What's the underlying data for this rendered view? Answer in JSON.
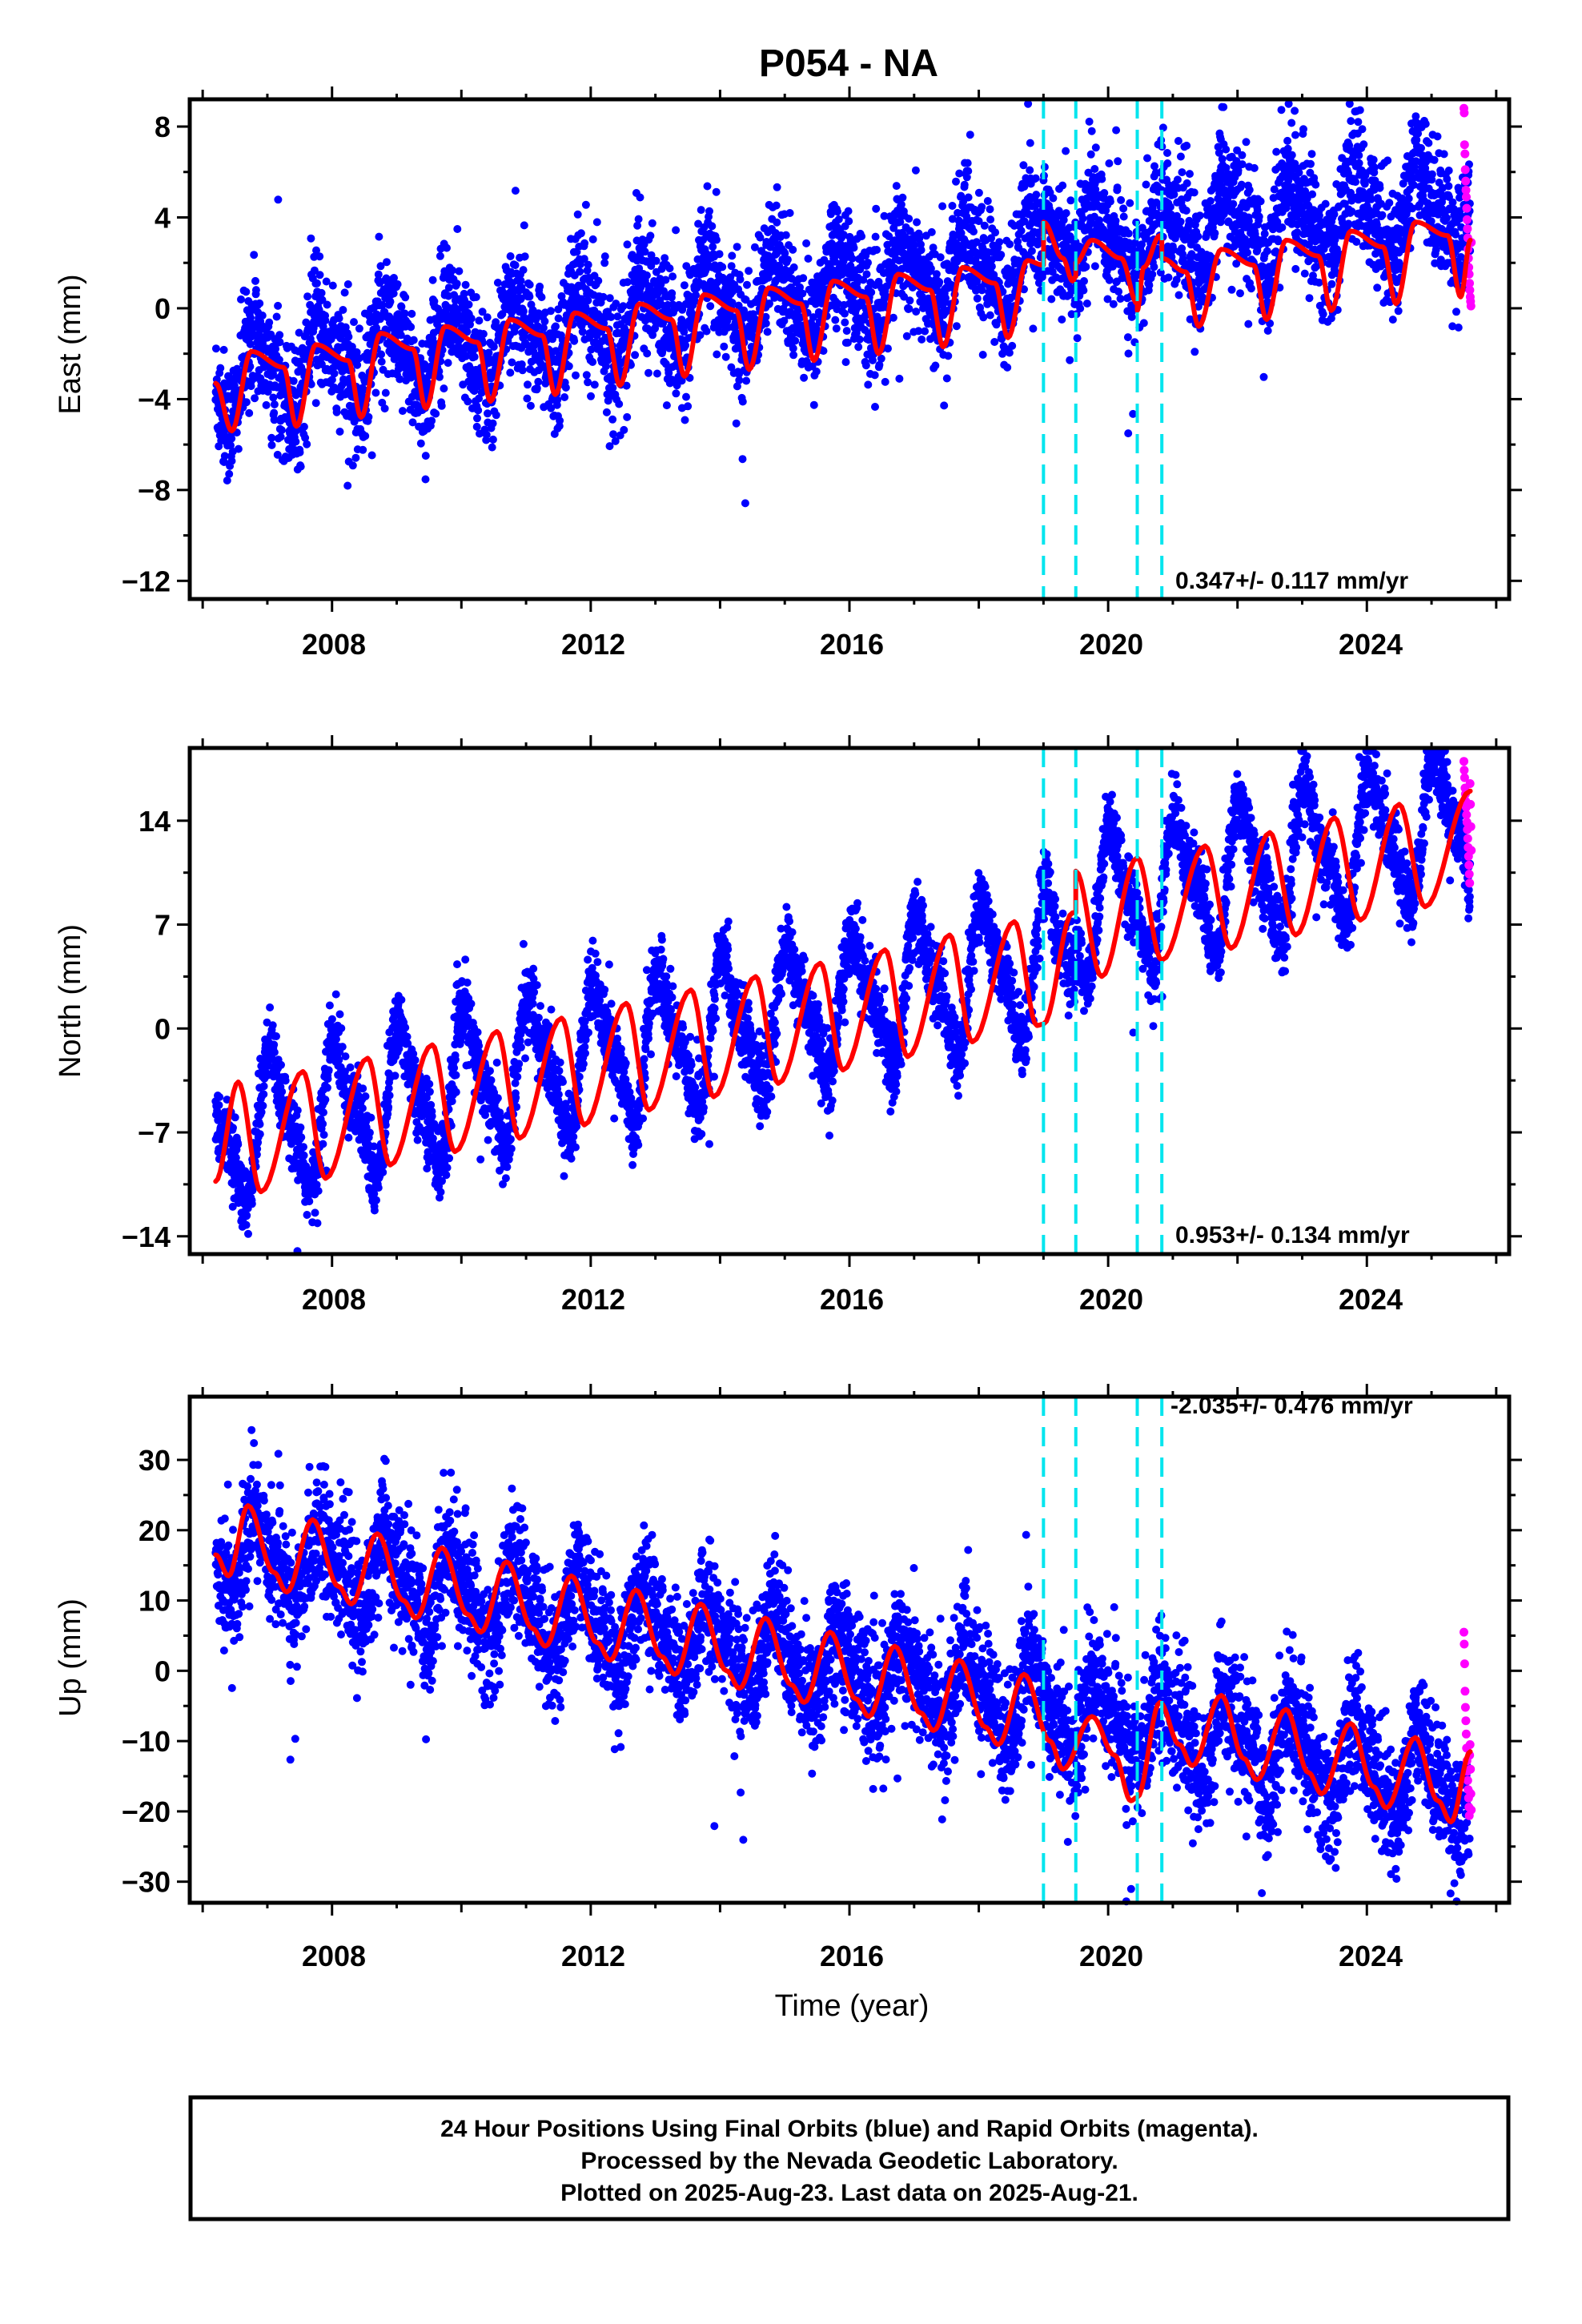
{
  "title": "P054 - NA",
  "x_axis_label": "Time (year)",
  "x_ticks": [
    "2008",
    "2012",
    "2016",
    "2020",
    "2024"
  ],
  "caption": {
    "line1": "24 Hour Positions Using Final Orbits (blue) and Rapid Orbits (magenta).",
    "line2": "Processed by the Nevada Geodetic Laboratory.",
    "line3": "Plotted on 2025-Aug-23. Last data on 2025-Aug-21."
  },
  "colors": {
    "final_orbits": "#0000ff",
    "rapid_orbits": "#ff00ff",
    "model": "#ff0000",
    "steps": "#00e5ee"
  },
  "chart_data": [
    {
      "type": "scatter",
      "panel": "east",
      "ylabel": "East (mm)",
      "rate_label": "0.347+/- 0.117 mm/yr",
      "xlim": [
        2005.8,
        2026.2
      ],
      "ylim": [
        -12.8,
        9.2
      ],
      "yticks": [
        8,
        4,
        0,
        -4,
        -8,
        -12
      ],
      "ytick_labels": [
        "8",
        "4",
        "0",
        "−4",
        "−8",
        "−12"
      ],
      "steps": [
        2019.0,
        2019.5,
        2020.45,
        2020.83
      ],
      "x_start": 2006.2,
      "x_end": 2025.6,
      "trend": {
        "t0": 2006.2,
        "v0": -3.2,
        "pieces": [
          {
            "until": 2019.0,
            "rate": 0.42
          },
          {
            "until": 2025.6,
            "rate": 0.3
          }
        ]
      },
      "offsets": [
        {
          "t": 2019.0,
          "dv": 1.5
        },
        {
          "t": 2019.5,
          "dv": -1.0
        },
        {
          "t": 2020.45,
          "dv": -0.5
        },
        {
          "t": 2020.83,
          "dv": 0.5
        }
      ],
      "annual_amp": 1.6,
      "annual_phase": 0.6,
      "noise": 1.35,
      "series": [
        {
          "name": "Final Orbits",
          "color": "#0000ff",
          "n": 5200
        },
        {
          "name": "Rapid Orbits",
          "color": "#ff00ff",
          "n": 22,
          "t_range": [
            2025.5,
            2025.62
          ],
          "values": [
            8.8,
            8.6,
            7.2,
            6.8,
            6.1,
            5.6,
            5.2,
            4.9,
            4.4,
            3.9,
            3.5,
            3.1,
            2.6,
            2.2,
            1.8,
            1.5,
            1.1,
            0.8,
            0.5,
            0.3,
            0.1,
            2.9
          ]
        }
      ],
      "model": [
        [
          2006.2,
          -3.3
        ],
        [
          2006.45,
          -5.4
        ],
        [
          2006.75,
          -1.9
        ],
        [
          2007.25,
          -2.6
        ],
        [
          2007.45,
          -5.2
        ],
        [
          2007.75,
          -1.6
        ],
        [
          2008.25,
          -2.3
        ],
        [
          2008.45,
          -4.8
        ],
        [
          2008.75,
          -1.1
        ],
        [
          2009.25,
          -1.8
        ],
        [
          2009.45,
          -4.4
        ],
        [
          2009.75,
          -0.8
        ],
        [
          2010.25,
          -1.5
        ],
        [
          2010.45,
          -4.1
        ],
        [
          2010.75,
          -0.5
        ],
        [
          2011.25,
          -1.2
        ],
        [
          2011.45,
          -3.8
        ],
        [
          2011.75,
          -0.2
        ],
        [
          2012.25,
          -0.9
        ],
        [
          2012.45,
          -3.4
        ],
        [
          2012.75,
          0.2
        ],
        [
          2013.25,
          -0.5
        ],
        [
          2013.45,
          -3.0
        ],
        [
          2013.75,
          0.6
        ],
        [
          2014.25,
          -0.1
        ],
        [
          2014.45,
          -2.7
        ],
        [
          2014.75,
          0.9
        ],
        [
          2015.25,
          0.2
        ],
        [
          2015.45,
          -2.3
        ],
        [
          2015.75,
          1.2
        ],
        [
          2016.25,
          0.5
        ],
        [
          2016.45,
          -2.0
        ],
        [
          2016.75,
          1.5
        ],
        [
          2017.25,
          0.8
        ],
        [
          2017.45,
          -1.7
        ],
        [
          2017.75,
          1.8
        ],
        [
          2018.25,
          1.1
        ],
        [
          2018.45,
          -1.3
        ],
        [
          2018.75,
          2.1
        ],
        [
          2019.0,
          1.9
        ],
        [
          2019.0,
          3.8
        ],
        [
          2019.3,
          2.2
        ],
        [
          2019.45,
          1.2
        ],
        [
          2019.5,
          1.4
        ],
        [
          2019.5,
          2.0
        ],
        [
          2019.75,
          3.0
        ],
        [
          2020.2,
          2.2
        ],
        [
          2020.45,
          0.2
        ],
        [
          2020.45,
          -0.1
        ],
        [
          2020.55,
          1.8
        ],
        [
          2020.8,
          3.2
        ],
        [
          2020.83,
          3.0
        ],
        [
          2020.83,
          2.2
        ],
        [
          2021.2,
          1.6
        ],
        [
          2021.4,
          -0.8
        ],
        [
          2021.75,
          2.6
        ],
        [
          2022.25,
          1.9
        ],
        [
          2022.45,
          -0.5
        ],
        [
          2022.75,
          3.0
        ],
        [
          2023.25,
          2.3
        ],
        [
          2023.45,
          -0.1
        ],
        [
          2023.75,
          3.4
        ],
        [
          2024.25,
          2.7
        ],
        [
          2024.45,
          0.2
        ],
        [
          2024.75,
          3.8
        ],
        [
          2025.25,
          3.2
        ],
        [
          2025.45,
          0.5
        ],
        [
          2025.6,
          3.0
        ]
      ]
    },
    {
      "type": "scatter",
      "panel": "north",
      "ylabel": "North (mm)",
      "rate_label": "0.953+/- 0.134 mm/yr",
      "xlim": [
        2005.8,
        2026.2
      ],
      "ylim": [
        -15.2,
        18.9
      ],
      "yticks": [
        14,
        7,
        0,
        -7,
        -14
      ],
      "ytick_labels": [
        "14",
        "7",
        "0",
        "−7",
        "−14"
      ],
      "steps": [
        2019.0,
        2019.5,
        2020.45,
        2020.83
      ],
      "x_start": 2006.2,
      "x_end": 2025.6,
      "trend": {
        "t0": 2006.2,
        "v0": -7.3,
        "pieces": [
          {
            "until": 2019.5,
            "rate": 0.92
          },
          {
            "until": 2025.6,
            "rate": 1.0
          }
        ]
      },
      "offsets": [
        {
          "t": 2019.5,
          "dv": 3.0
        }
      ],
      "annual_amp": 4.2,
      "annual_phase": 0.85,
      "noise": 1.25,
      "series": [
        {
          "name": "Final Orbits",
          "color": "#0000ff",
          "n": 5200
        },
        {
          "name": "Rapid Orbits",
          "color": "#ff00ff",
          "n": 20,
          "t_range": [
            2025.5,
            2025.62
          ],
          "values": [
            18.0,
            17.4,
            16.9,
            16.2,
            15.8,
            15.3,
            14.9,
            14.4,
            13.9,
            13.4,
            12.8,
            12.2,
            11.6,
            11.0,
            10.4,
            9.8,
            16.5,
            15.1,
            13.6,
            12.0
          ]
        }
      ],
      "model": [
        [
          2006.2,
          -10.3
        ],
        [
          2006.55,
          -3.6
        ],
        [
          2006.9,
          -11.0
        ],
        [
          2007.55,
          -2.9
        ],
        [
          2007.9,
          -10.1
        ],
        [
          2008.55,
          -2.0
        ],
        [
          2008.9,
          -9.2
        ],
        [
          2009.55,
          -1.1
        ],
        [
          2009.9,
          -8.3
        ],
        [
          2010.55,
          -0.2
        ],
        [
          2010.9,
          -7.4
        ],
        [
          2011.55,
          0.7
        ],
        [
          2011.9,
          -6.5
        ],
        [
          2012.55,
          1.7
        ],
        [
          2012.9,
          -5.5
        ],
        [
          2013.55,
          2.6
        ],
        [
          2013.9,
          -4.6
        ],
        [
          2014.55,
          3.5
        ],
        [
          2014.9,
          -3.7
        ],
        [
          2015.55,
          4.4
        ],
        [
          2015.9,
          -2.8
        ],
        [
          2016.55,
          5.3
        ],
        [
          2016.9,
          -1.9
        ],
        [
          2017.55,
          6.3
        ],
        [
          2017.9,
          -0.9
        ],
        [
          2018.55,
          7.2
        ],
        [
          2018.9,
          0.2
        ],
        [
          2019.0,
          0.3
        ],
        [
          2019.45,
          7.8
        ],
        [
          2019.5,
          7.8
        ],
        [
          2019.5,
          10.6
        ],
        [
          2019.9,
          3.5
        ],
        [
          2020.45,
          11.5
        ],
        [
          2020.83,
          4.6
        ],
        [
          2021.5,
          12.3
        ],
        [
          2021.9,
          5.4
        ],
        [
          2022.5,
          13.2
        ],
        [
          2022.9,
          6.3
        ],
        [
          2023.5,
          14.2
        ],
        [
          2023.9,
          7.3
        ],
        [
          2024.5,
          15.1
        ],
        [
          2024.9,
          8.2
        ],
        [
          2025.6,
          16.0
        ]
      ]
    },
    {
      "type": "scatter",
      "panel": "up",
      "ylabel": "Up (mm)",
      "rate_label": "-2.035+/- 0.476 mm/yr",
      "xlim": [
        2005.8,
        2026.2
      ],
      "ylim": [
        -33.0,
        39.0
      ],
      "yticks": [
        30,
        20,
        10,
        0,
        -10,
        -20,
        -30
      ],
      "ytick_labels": [
        "30",
        "20",
        "10",
        "0",
        "−10",
        "−20",
        "−30"
      ],
      "steps": [
        2019.0,
        2019.5,
        2020.45,
        2020.83
      ],
      "x_start": 2006.2,
      "x_end": 2025.6,
      "trend": {
        "t0": 2006.2,
        "v0": 17.5,
        "pieces": [
          {
            "until": 2025.6,
            "rate": -1.75
          }
        ]
      },
      "offsets": [
        {
          "t": 2020.45,
          "dv": 0
        }
      ],
      "annual_amp": 5.2,
      "annual_phase": 0.62,
      "noise": 4.3,
      "series": [
        {
          "name": "Final Orbits",
          "color": "#0000ff",
          "n": 5200
        },
        {
          "name": "Rapid Orbits",
          "color": "#ff00ff",
          "n": 20,
          "t_range": [
            2025.5,
            2025.62
          ],
          "values": [
            5.5,
            3.8,
            1.0,
            -2.9,
            -5.2,
            -7.1,
            -9.0,
            -11.0,
            -12.8,
            -14.3,
            -15.6,
            -16.9,
            -18.1,
            -19.4,
            -20.6,
            -12.0,
            -10.5,
            -14.0,
            -17.5,
            -19.8
          ]
        }
      ],
      "model": [
        [
          2006.2,
          16.5
        ],
        [
          2006.4,
          13.5
        ],
        [
          2006.7,
          23.5
        ],
        [
          2007.1,
          14.0
        ],
        [
          2007.3,
          11.2
        ],
        [
          2007.7,
          21.5
        ],
        [
          2008.1,
          12.0
        ],
        [
          2008.3,
          9.5
        ],
        [
          2008.7,
          19.5
        ],
        [
          2009.1,
          10.0
        ],
        [
          2009.3,
          7.5
        ],
        [
          2009.7,
          17.5
        ],
        [
          2010.1,
          8.0
        ],
        [
          2010.3,
          5.5
        ],
        [
          2010.7,
          15.5
        ],
        [
          2011.1,
          6.0
        ],
        [
          2011.3,
          3.5
        ],
        [
          2011.7,
          13.5
        ],
        [
          2012.1,
          4.0
        ],
        [
          2012.3,
          1.5
        ],
        [
          2012.7,
          11.5
        ],
        [
          2013.1,
          2.0
        ],
        [
          2013.3,
          -0.5
        ],
        [
          2013.7,
          9.5
        ],
        [
          2014.1,
          0.0
        ],
        [
          2014.3,
          -2.5
        ],
        [
          2014.7,
          7.5
        ],
        [
          2015.1,
          -2.0
        ],
        [
          2015.3,
          -4.5
        ],
        [
          2015.7,
          5.5
        ],
        [
          2016.1,
          -4.0
        ],
        [
          2016.3,
          -6.5
        ],
        [
          2016.7,
          3.5
        ],
        [
          2017.1,
          -6.0
        ],
        [
          2017.3,
          -8.5
        ],
        [
          2017.7,
          1.5
        ],
        [
          2018.1,
          -8.0
        ],
        [
          2018.3,
          -10.5
        ],
        [
          2018.7,
          -0.5
        ],
        [
          2019.1,
          -10.0
        ],
        [
          2019.3,
          -14.0
        ],
        [
          2019.75,
          -6.5
        ],
        [
          2020.1,
          -12.0
        ],
        [
          2020.35,
          -18.5
        ],
        [
          2020.45,
          -18.0
        ],
        [
          2020.8,
          -4.5
        ],
        [
          2021.1,
          -10.5
        ],
        [
          2021.3,
          -13.5
        ],
        [
          2021.75,
          -3.5
        ],
        [
          2022.1,
          -12.5
        ],
        [
          2022.3,
          -15.5
        ],
        [
          2022.75,
          -5.5
        ],
        [
          2023.1,
          -14.5
        ],
        [
          2023.3,
          -17.5
        ],
        [
          2023.75,
          -7.5
        ],
        [
          2024.1,
          -16.5
        ],
        [
          2024.3,
          -19.5
        ],
        [
          2024.75,
          -9.5
        ],
        [
          2025.1,
          -18.5
        ],
        [
          2025.3,
          -21.5
        ],
        [
          2025.6,
          -11.5
        ]
      ]
    }
  ]
}
